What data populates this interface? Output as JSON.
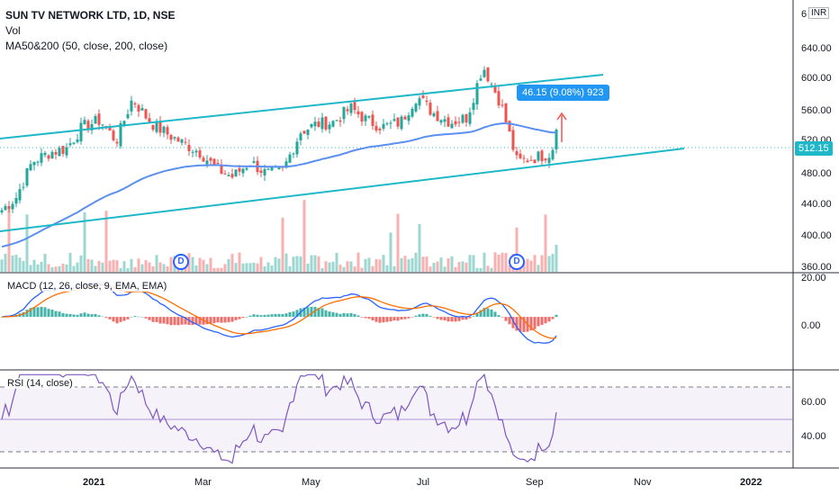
{
  "header": {
    "title": "SUN TV NETWORK LTD, 1D, NSE",
    "vol_label": "Vol",
    "ma_label": "MA50&200 (50, close, 200, close)",
    "currency": "INR"
  },
  "annotations": {
    "measure_text": "46.15 (9.08%) 923",
    "last_price": "512.15",
    "dividend_marker": "D"
  },
  "panes": {
    "macd_label": "MACD (12, 26, close, 9, EMA, EMA)",
    "rsi_label": "RSI (14, close)"
  },
  "axes": {
    "price_ticks": [
      "640.00",
      "600.00",
      "560.00",
      "520.00",
      "480.00",
      "440.00",
      "400.00",
      "360.00"
    ],
    "price_top_partial": "6",
    "macd_ticks": [
      "20.00",
      "0.00"
    ],
    "rsi_ticks": [
      "60.00",
      "40.00"
    ],
    "x_ticks": [
      "2021",
      "Mar",
      "May",
      "Jul",
      "Sep",
      "Nov",
      "2022"
    ]
  },
  "colors": {
    "up": "#26a69a",
    "down": "#ef5350",
    "channel": "#1eb8c9",
    "ma": "#5b8ff0",
    "macd_line": "#2962ff",
    "signal_line": "#ff6d00",
    "rsi_line": "#7e57c2",
    "measure_box": "#2196f3"
  },
  "chart_data": {
    "type": "candlestick",
    "price_range": [
      360,
      650
    ],
    "macd_range": [
      -30,
      25
    ],
    "rsi_range": [
      25,
      75
    ],
    "close_series": [
      [
        "2020-11-16",
        425
      ],
      [
        "2020-11-25",
        440
      ],
      [
        "2020-12-04",
        478
      ],
      [
        "2020-12-14",
        488
      ],
      [
        "2020-12-23",
        492
      ],
      [
        "2021-01-01",
        515
      ],
      [
        "2021-01-11",
        522
      ],
      [
        "2021-01-20",
        500
      ],
      [
        "2021-01-29",
        545
      ],
      [
        "2021-02-08",
        520
      ],
      [
        "2021-02-17",
        508
      ],
      [
        "2021-02-26",
        498
      ],
      [
        "2021-03-08",
        488
      ],
      [
        "2021-03-17",
        470
      ],
      [
        "2021-03-26",
        462
      ],
      [
        "2021-04-05",
        478
      ],
      [
        "2021-04-14",
        465
      ],
      [
        "2021-04-23",
        468
      ],
      [
        "2021-05-03",
        510
      ],
      [
        "2021-05-12",
        518
      ],
      [
        "2021-05-21",
        520
      ],
      [
        "2021-05-31",
        535
      ],
      [
        "2021-06-09",
        522
      ],
      [
        "2021-06-18",
        515
      ],
      [
        "2021-06-28",
        520
      ],
      [
        "2021-07-07",
        548
      ],
      [
        "2021-07-16",
        530
      ],
      [
        "2021-07-26",
        520
      ],
      [
        "2021-08-04",
        525
      ],
      [
        "2021-08-13",
        580
      ],
      [
        "2021-08-23",
        540
      ],
      [
        "2021-09-01",
        478
      ],
      [
        "2021-09-10",
        482
      ],
      [
        "2021-09-20",
        487
      ],
      [
        "2021-09-24",
        512.15
      ]
    ],
    "measure": {
      "change": 46.15,
      "percent": 9.08,
      "bars": 923
    },
    "last_close": 512.15
  }
}
